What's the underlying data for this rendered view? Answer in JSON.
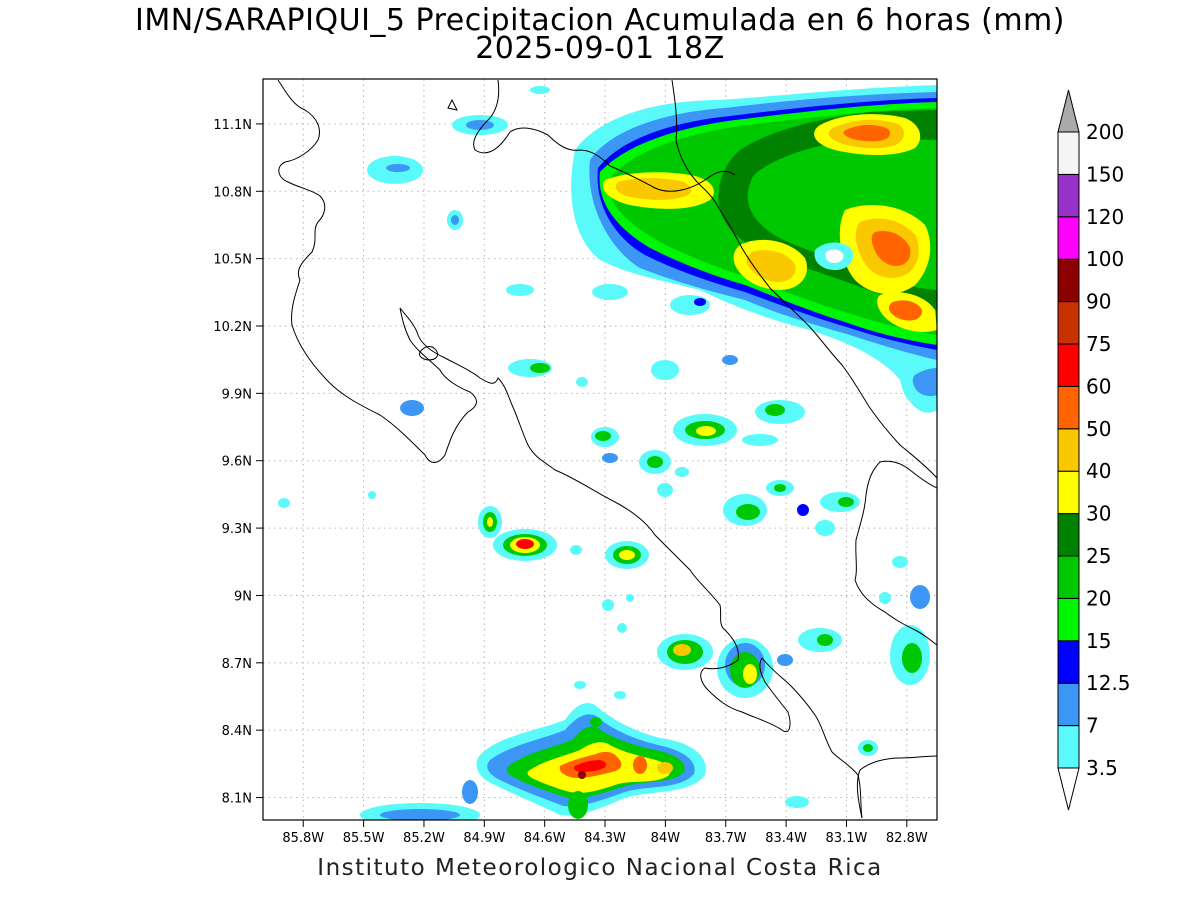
{
  "title": {
    "line1": "IMN/SARAPIQUI_5 Precipitacion Acumulada en 6 horas (mm)",
    "line2": "2025-09-01 18Z"
  },
  "footer": "Instituto Meteorologico Nacional Costa Rica",
  "map": {
    "region": "Costa Rica",
    "grid": true,
    "lon_range": [
      -86.0,
      -82.65
    ],
    "lat_range": [
      8.0,
      11.3
    ],
    "lon_ticks": [
      "85.8W",
      "85.5W",
      "85.2W",
      "84.9W",
      "84.6W",
      "84.3W",
      "84W",
      "83.7W",
      "83.4W",
      "83.1W",
      "82.8W"
    ],
    "lat_ticks": [
      "11.1N",
      "10.8N",
      "10.5N",
      "10.2N",
      "9.9N",
      "9.6N",
      "9.3N",
      "9N",
      "8.7N",
      "8.4N",
      "8.1N"
    ]
  },
  "colorbar": {
    "labels": [
      "3.5",
      "7",
      "12.5",
      "15",
      "20",
      "25",
      "30",
      "40",
      "50",
      "60",
      "75",
      "90",
      "100",
      "120",
      "150",
      "200"
    ],
    "colors": [
      "#5afafa",
      "#3c96f5",
      "#0000ff",
      "#00f500",
      "#00c800",
      "#008200",
      "#ffff00",
      "#fac800",
      "#ff6400",
      "#ff0000",
      "#c83200",
      "#8c0000",
      "#ff00ff",
      "#9632c8",
      "#f5f5f5",
      "#aaaaaa"
    ],
    "over_color": "#aaaaaa",
    "under_color": "#ffffff"
  }
}
